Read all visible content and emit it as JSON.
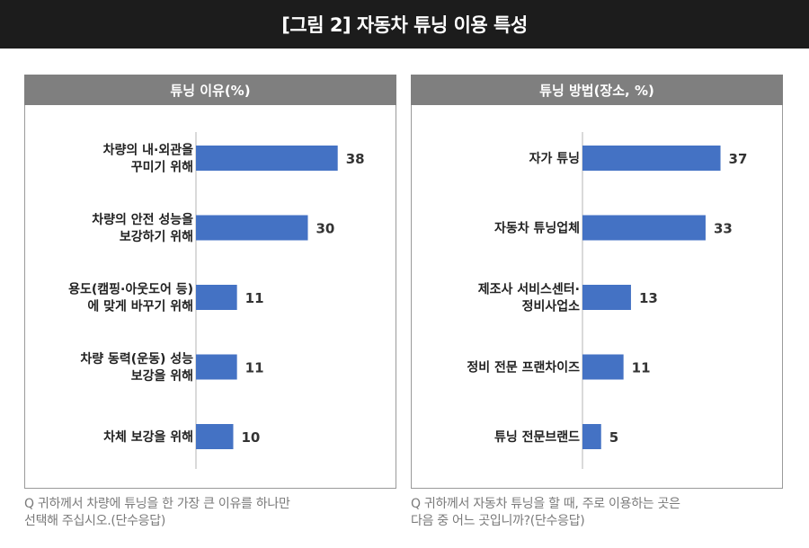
{
  "title": "[그림 2] 자동차 튜닝 이용 특성",
  "colors": {
    "bar": "#4472c4",
    "header": "#7f7f7f",
    "topbar": "#1c1c1c"
  },
  "chart_data": [
    {
      "type": "bar",
      "orientation": "horizontal",
      "title": "튜닝 이유(%)",
      "categories": [
        [
          "차량의 내·외관을",
          "꾸미기 위해"
        ],
        [
          "차량의 안전 성능을",
          "보강하기 위해"
        ],
        [
          "용도(캠핑·아웃도어 등)",
          "에 맞게 바꾸기 위해"
        ],
        [
          "차량 동력(운동) 성능",
          "보강을 위해"
        ],
        [
          "차체 보강을 위해"
        ]
      ],
      "values": [
        38,
        30,
        11,
        11,
        10
      ],
      "xlim": [
        0,
        50
      ]
    },
    {
      "type": "bar",
      "orientation": "horizontal",
      "title": "튜닝 방법(장소, %)",
      "categories": [
        [
          "자가 튜닝"
        ],
        [
          "자동차 튜닝업체"
        ],
        [
          "제조사 서비스센터·",
          "정비사업소"
        ],
        [
          "정비 전문 프랜차이즈"
        ],
        [
          "튜닝 전문브랜드"
        ]
      ],
      "values": [
        37,
        33,
        13,
        11,
        5
      ],
      "xlim": [
        0,
        50
      ]
    }
  ],
  "footnotes": [
    [
      "Q 귀하께서 차량에 튜닝을 한 가장 큰 이유를 하나만",
      "선택해 주십시오.(단수응답)"
    ],
    [
      "Q 귀하께서 자동차 튜닝을 할 때, 주로 이용하는 곳은",
      "다음 중 어느 곳입니까?(단수응답)"
    ]
  ]
}
